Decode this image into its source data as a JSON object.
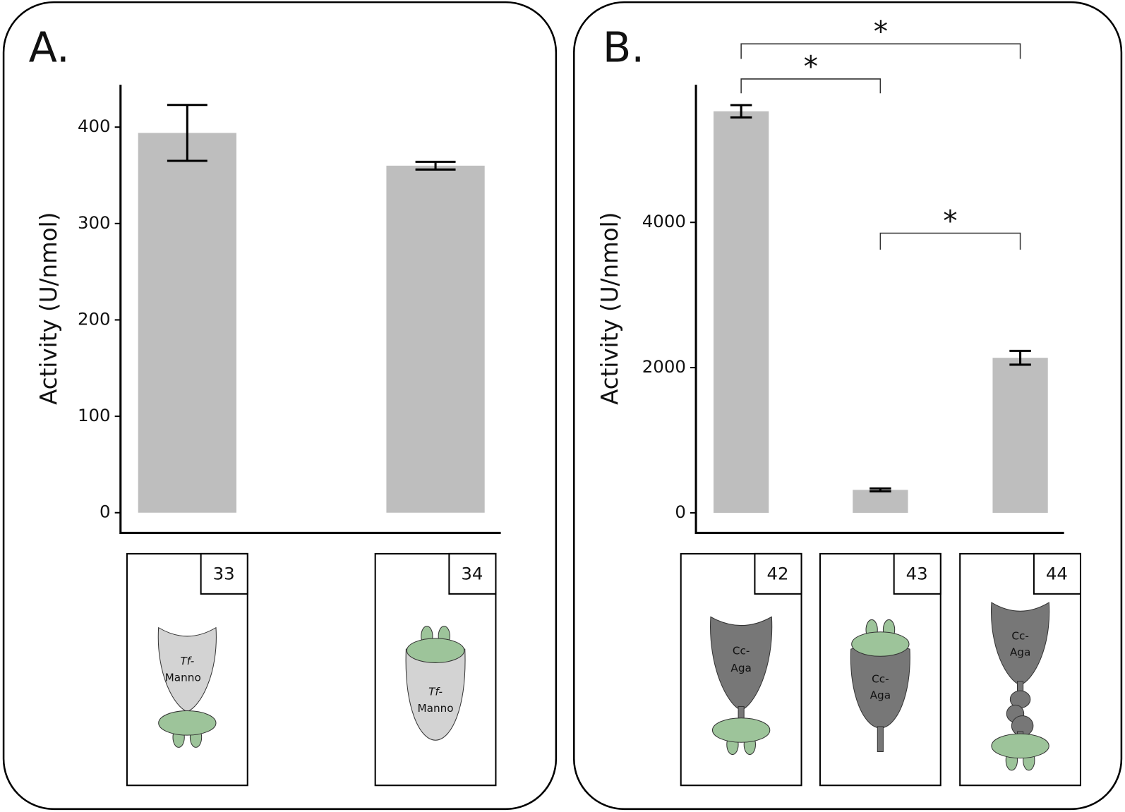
{
  "chart_data": [
    {
      "type": "bar",
      "title": "A.",
      "ylabel": "Activity (U/nmol)",
      "categories": [
        "33",
        "34"
      ],
      "values": [
        394,
        360
      ],
      "errors": [
        29,
        4
      ],
      "color": "#bebebe",
      "ylim": [
        -21,
        444
      ],
      "yticks": [
        0,
        100,
        200,
        300,
        400
      ],
      "diagram_labels": [
        [
          "Tf-",
          "Manno"
        ],
        [
          "Tf-",
          "Manno"
        ]
      ]
    },
    {
      "type": "bar",
      "title": "B.",
      "ylabel": "Activity (U/nmol)",
      "categories": [
        "42",
        "43",
        "44"
      ],
      "values": [
        5530,
        316,
        2135
      ],
      "errors": [
        85,
        20,
        95
      ],
      "color": "#bebebe",
      "ylim": [
        -277,
        5896
      ],
      "yticks": [
        0,
        2000,
        4000
      ],
      "significance": [
        {
          "label": "*",
          "between": [
            "42",
            "43"
          ]
        },
        {
          "label": "*",
          "between": [
            "42",
            "44"
          ]
        },
        {
          "label": "*",
          "between": [
            "43",
            "44"
          ]
        }
      ],
      "diagram_labels": [
        [
          "Cc-",
          "Aga"
        ],
        [
          "Cc-",
          "Aga"
        ],
        [
          "Cc-",
          "Aga"
        ]
      ]
    }
  ]
}
